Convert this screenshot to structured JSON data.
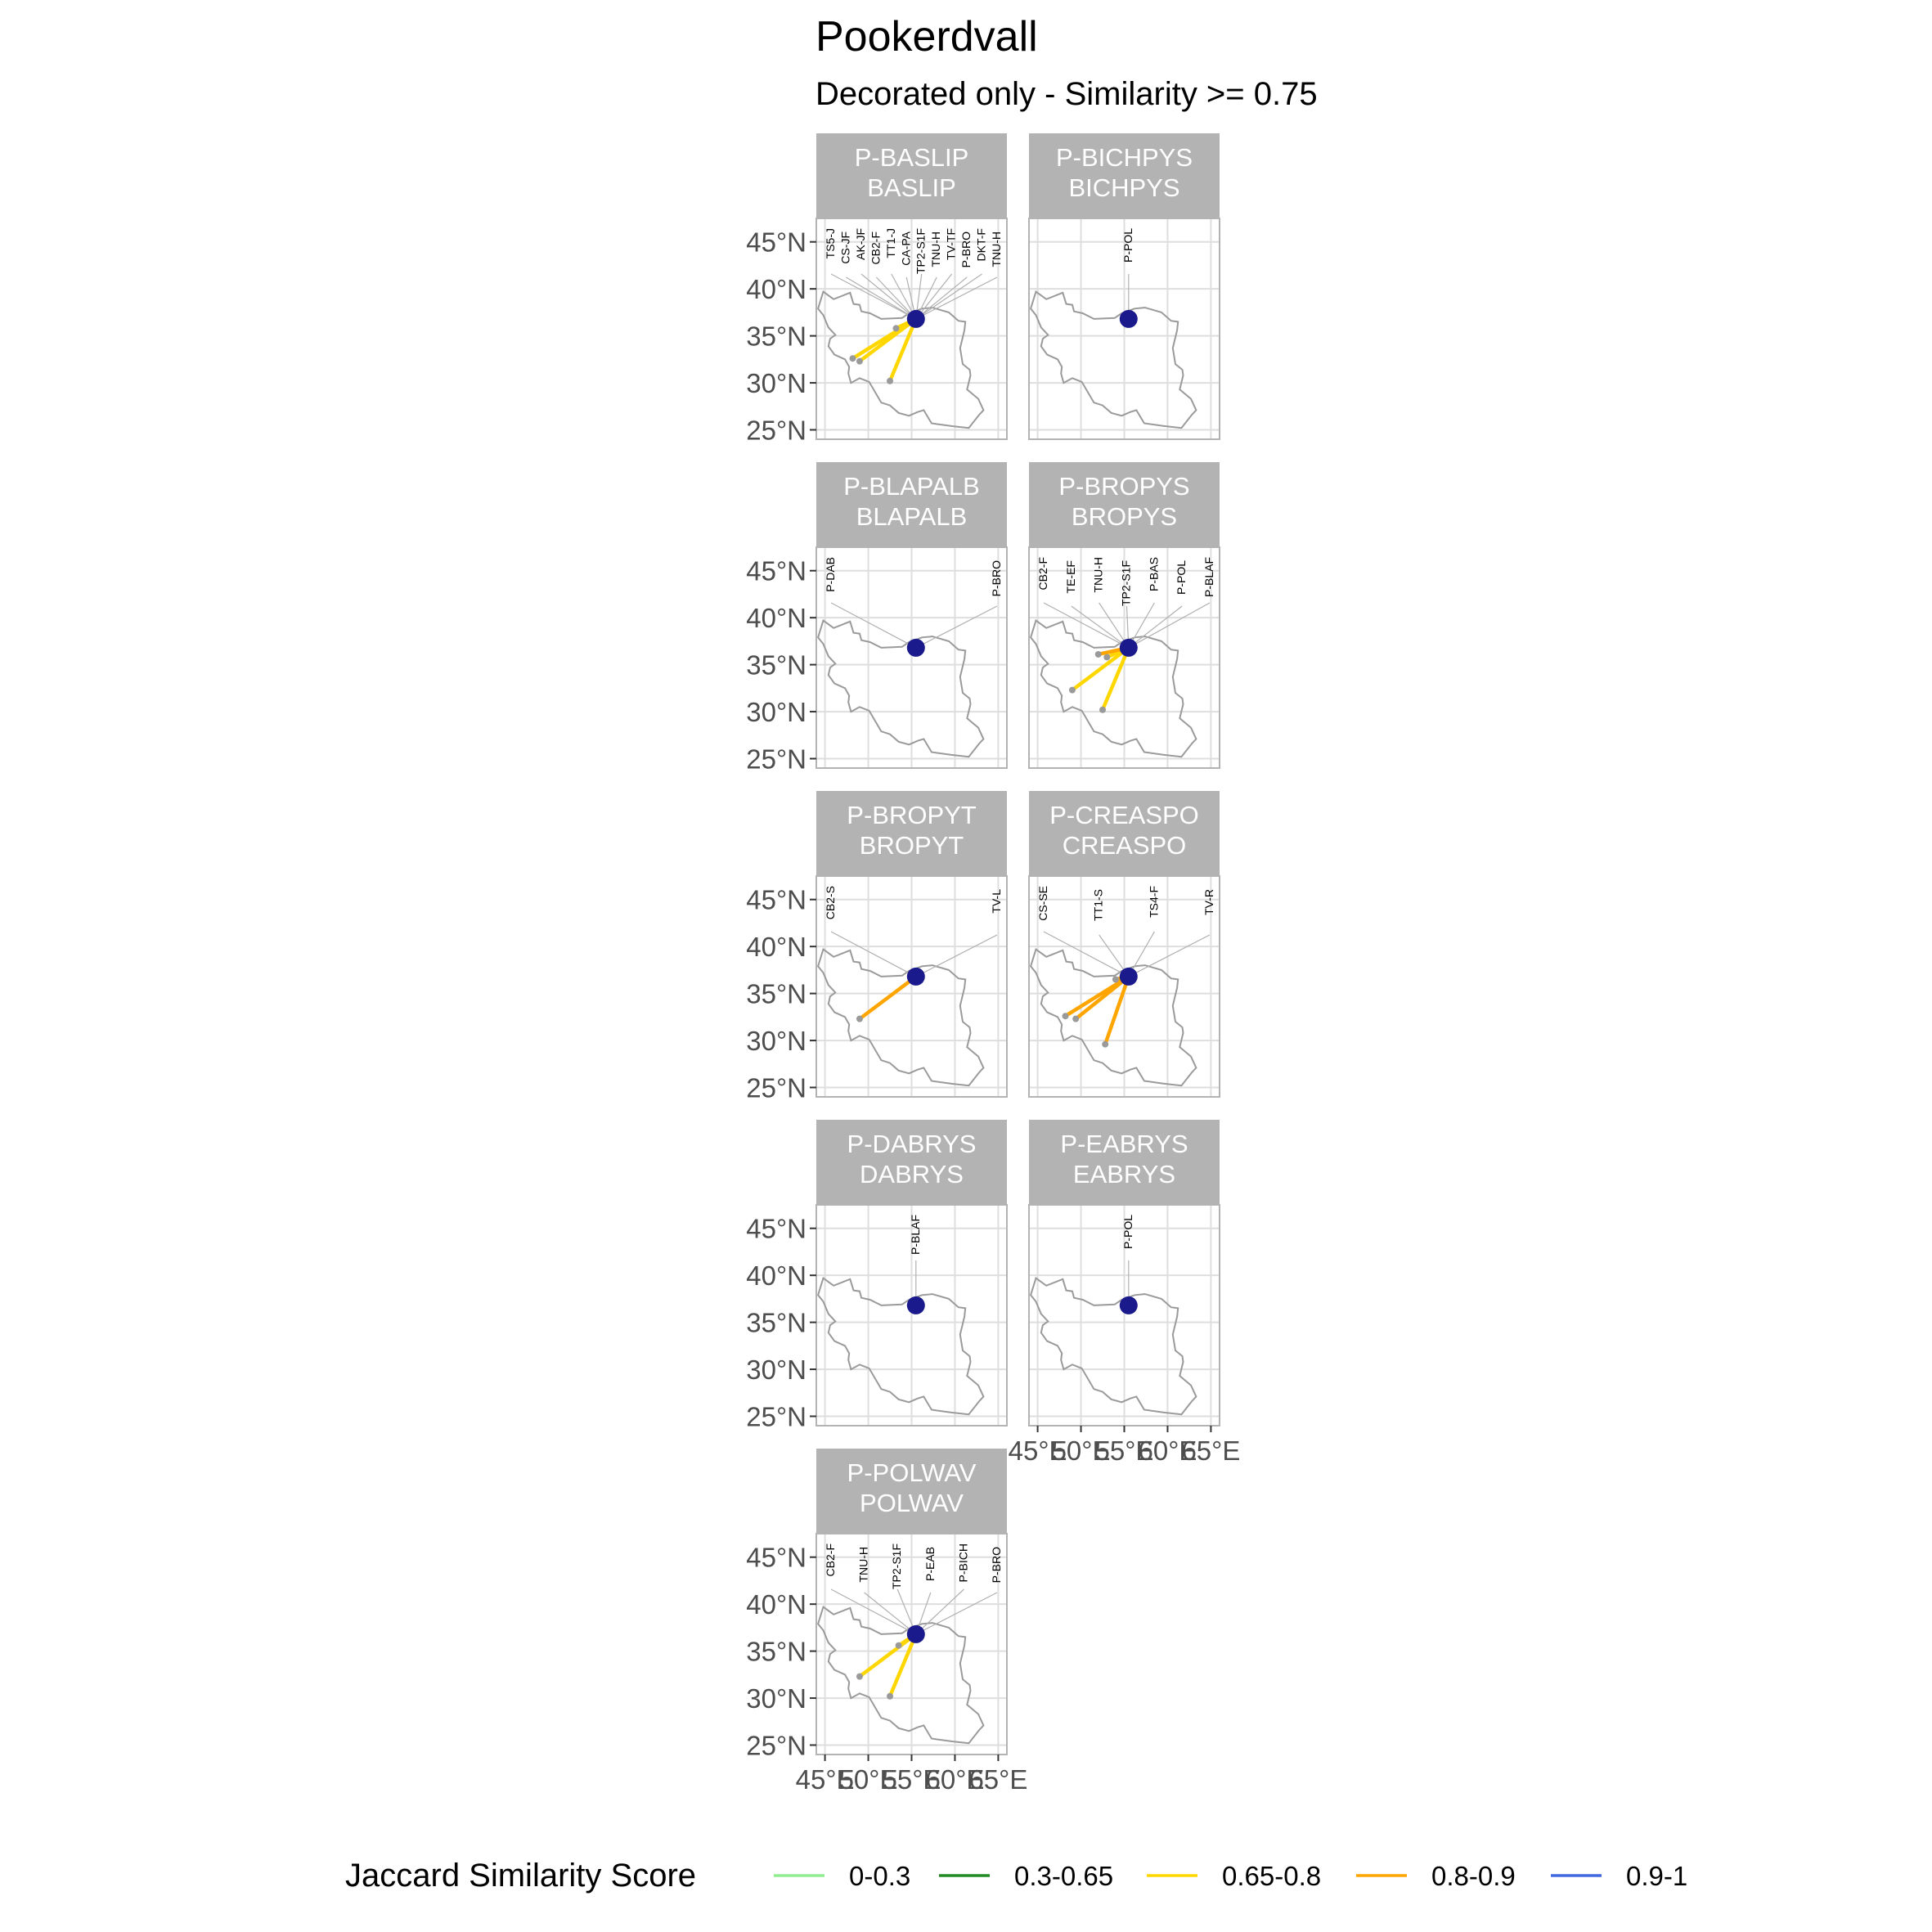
{
  "title": "Pookerdvall",
  "subtitle": "Decorated only - Similarity >= 0.75",
  "chart_data": {
    "type": "map-facets",
    "xlim": [
      44,
      66
    ],
    "ylim": [
      24,
      47.5
    ],
    "x_ticks": [
      45,
      50,
      55,
      60,
      65
    ],
    "x_tick_labels": [
      "45°E",
      "50°E",
      "55°E",
      "60°E",
      "65°E"
    ],
    "y_ticks": [
      25,
      30,
      35,
      40,
      45
    ],
    "y_tick_labels": [
      "25°N",
      "30°N",
      "35°N",
      "40°N",
      "45°N"
    ],
    "grid": true,
    "legend": {
      "title": "Jaccard Similarity Score",
      "position": "bottom",
      "items": [
        {
          "label": "0-0.3",
          "color": "#90EE90"
        },
        {
          "label": "0.3-0.65",
          "color": "#228B22"
        },
        {
          "label": "0.65-0.8",
          "color": "#FFD700"
        },
        {
          "label": "0.8-0.9",
          "color": "#FFA500"
        },
        {
          "label": "0.9-1",
          "color": "#4169E1"
        }
      ]
    },
    "center_color": "#1a1a8c",
    "facets": [
      {
        "strip": [
          "P-BASLIP",
          "BASLIP"
        ],
        "center": [
          55.5,
          36.8
        ],
        "links": [
          {
            "to": [
              48.2,
              32.6
            ],
            "score": "0.65-0.8"
          },
          {
            "to": [
              49.0,
              32.3
            ],
            "score": "0.65-0.8"
          },
          {
            "to": [
              52.5,
              30.2
            ],
            "score": "0.65-0.8"
          },
          {
            "to": [
              53.2,
              35.8
            ],
            "score": "0.65-0.8"
          }
        ],
        "labels": [
          "TS5-J",
          "CS-JF",
          "AK-JF",
          "CB2-F",
          "TT1-J",
          "CA-PA",
          "TP2-S1F",
          "TNU-H",
          "TV-TF",
          "P-BRO",
          "DKT-F",
          "TNU-H"
        ]
      },
      {
        "strip": [
          "P-BICHPYS",
          "BICHPYS"
        ],
        "center": [
          55.5,
          36.8
        ],
        "links": [],
        "labels": [
          "P-POL"
        ]
      },
      {
        "strip": [
          "P-BLAPALB",
          "BLAPALB"
        ],
        "center": [
          55.5,
          36.8
        ],
        "links": [],
        "labels": [
          "P-DAB",
          "P-BRO"
        ]
      },
      {
        "strip": [
          "P-BROPYS",
          "BROPYS"
        ],
        "center": [
          55.5,
          36.8
        ],
        "links": [
          {
            "to": [
              49.0,
              32.3
            ],
            "score": "0.65-0.8"
          },
          {
            "to": [
              52.5,
              30.2
            ],
            "score": "0.65-0.8"
          },
          {
            "to": [
              53.0,
              35.8
            ],
            "score": "0.65-0.8"
          },
          {
            "to": [
              52.0,
              36.1
            ],
            "score": "0.8-0.9"
          }
        ],
        "labels": [
          "CB2-F",
          "TE-EF",
          "TNU-H",
          "TP2-S1F",
          "P-BAS",
          "P-POL",
          "P-BLAF"
        ]
      },
      {
        "strip": [
          "P-BROPYT",
          "BROPYT"
        ],
        "center": [
          55.5,
          36.8
        ],
        "links": [
          {
            "to": [
              49.0,
              32.3
            ],
            "score": "0.8-0.9"
          }
        ],
        "labels": [
          "CB2-S",
          "TV-L"
        ]
      },
      {
        "strip": [
          "P-CREASPO",
          "CREASPO"
        ],
        "center": [
          55.5,
          36.8
        ],
        "links": [
          {
            "to": [
              48.2,
              32.6
            ],
            "score": "0.8-0.9"
          },
          {
            "to": [
              49.4,
              32.3
            ],
            "score": "0.8-0.9"
          },
          {
            "to": [
              52.8,
              29.6
            ],
            "score": "0.8-0.9"
          },
          {
            "to": [
              54.0,
              36.5
            ],
            "score": "0.8-0.9"
          }
        ],
        "labels": [
          "CS-SE",
          "TT1-S",
          "TS4-F",
          "TV-R"
        ]
      },
      {
        "strip": [
          "P-DABRYS",
          "DABRYS"
        ],
        "center": [
          55.5,
          36.8
        ],
        "links": [],
        "labels": [
          "P-BLAF"
        ]
      },
      {
        "strip": [
          "P-EABRYS",
          "EABRYS"
        ],
        "center": [
          55.5,
          36.8
        ],
        "links": [],
        "labels": [
          "P-POL"
        ]
      },
      {
        "strip": [
          "P-POLWAV",
          "POLWAV"
        ],
        "center": [
          55.5,
          36.8
        ],
        "links": [
          {
            "to": [
              49.0,
              32.3
            ],
            "score": "0.65-0.8"
          },
          {
            "to": [
              52.5,
              30.2
            ],
            "score": "0.65-0.8"
          },
          {
            "to": [
              53.5,
              35.6
            ],
            "score": "0.65-0.8"
          }
        ],
        "labels": [
          "CB2-F",
          "TNU-H",
          "TP2-S1F",
          "P-EAB",
          "P-BICH",
          "P-BRO"
        ]
      }
    ]
  }
}
